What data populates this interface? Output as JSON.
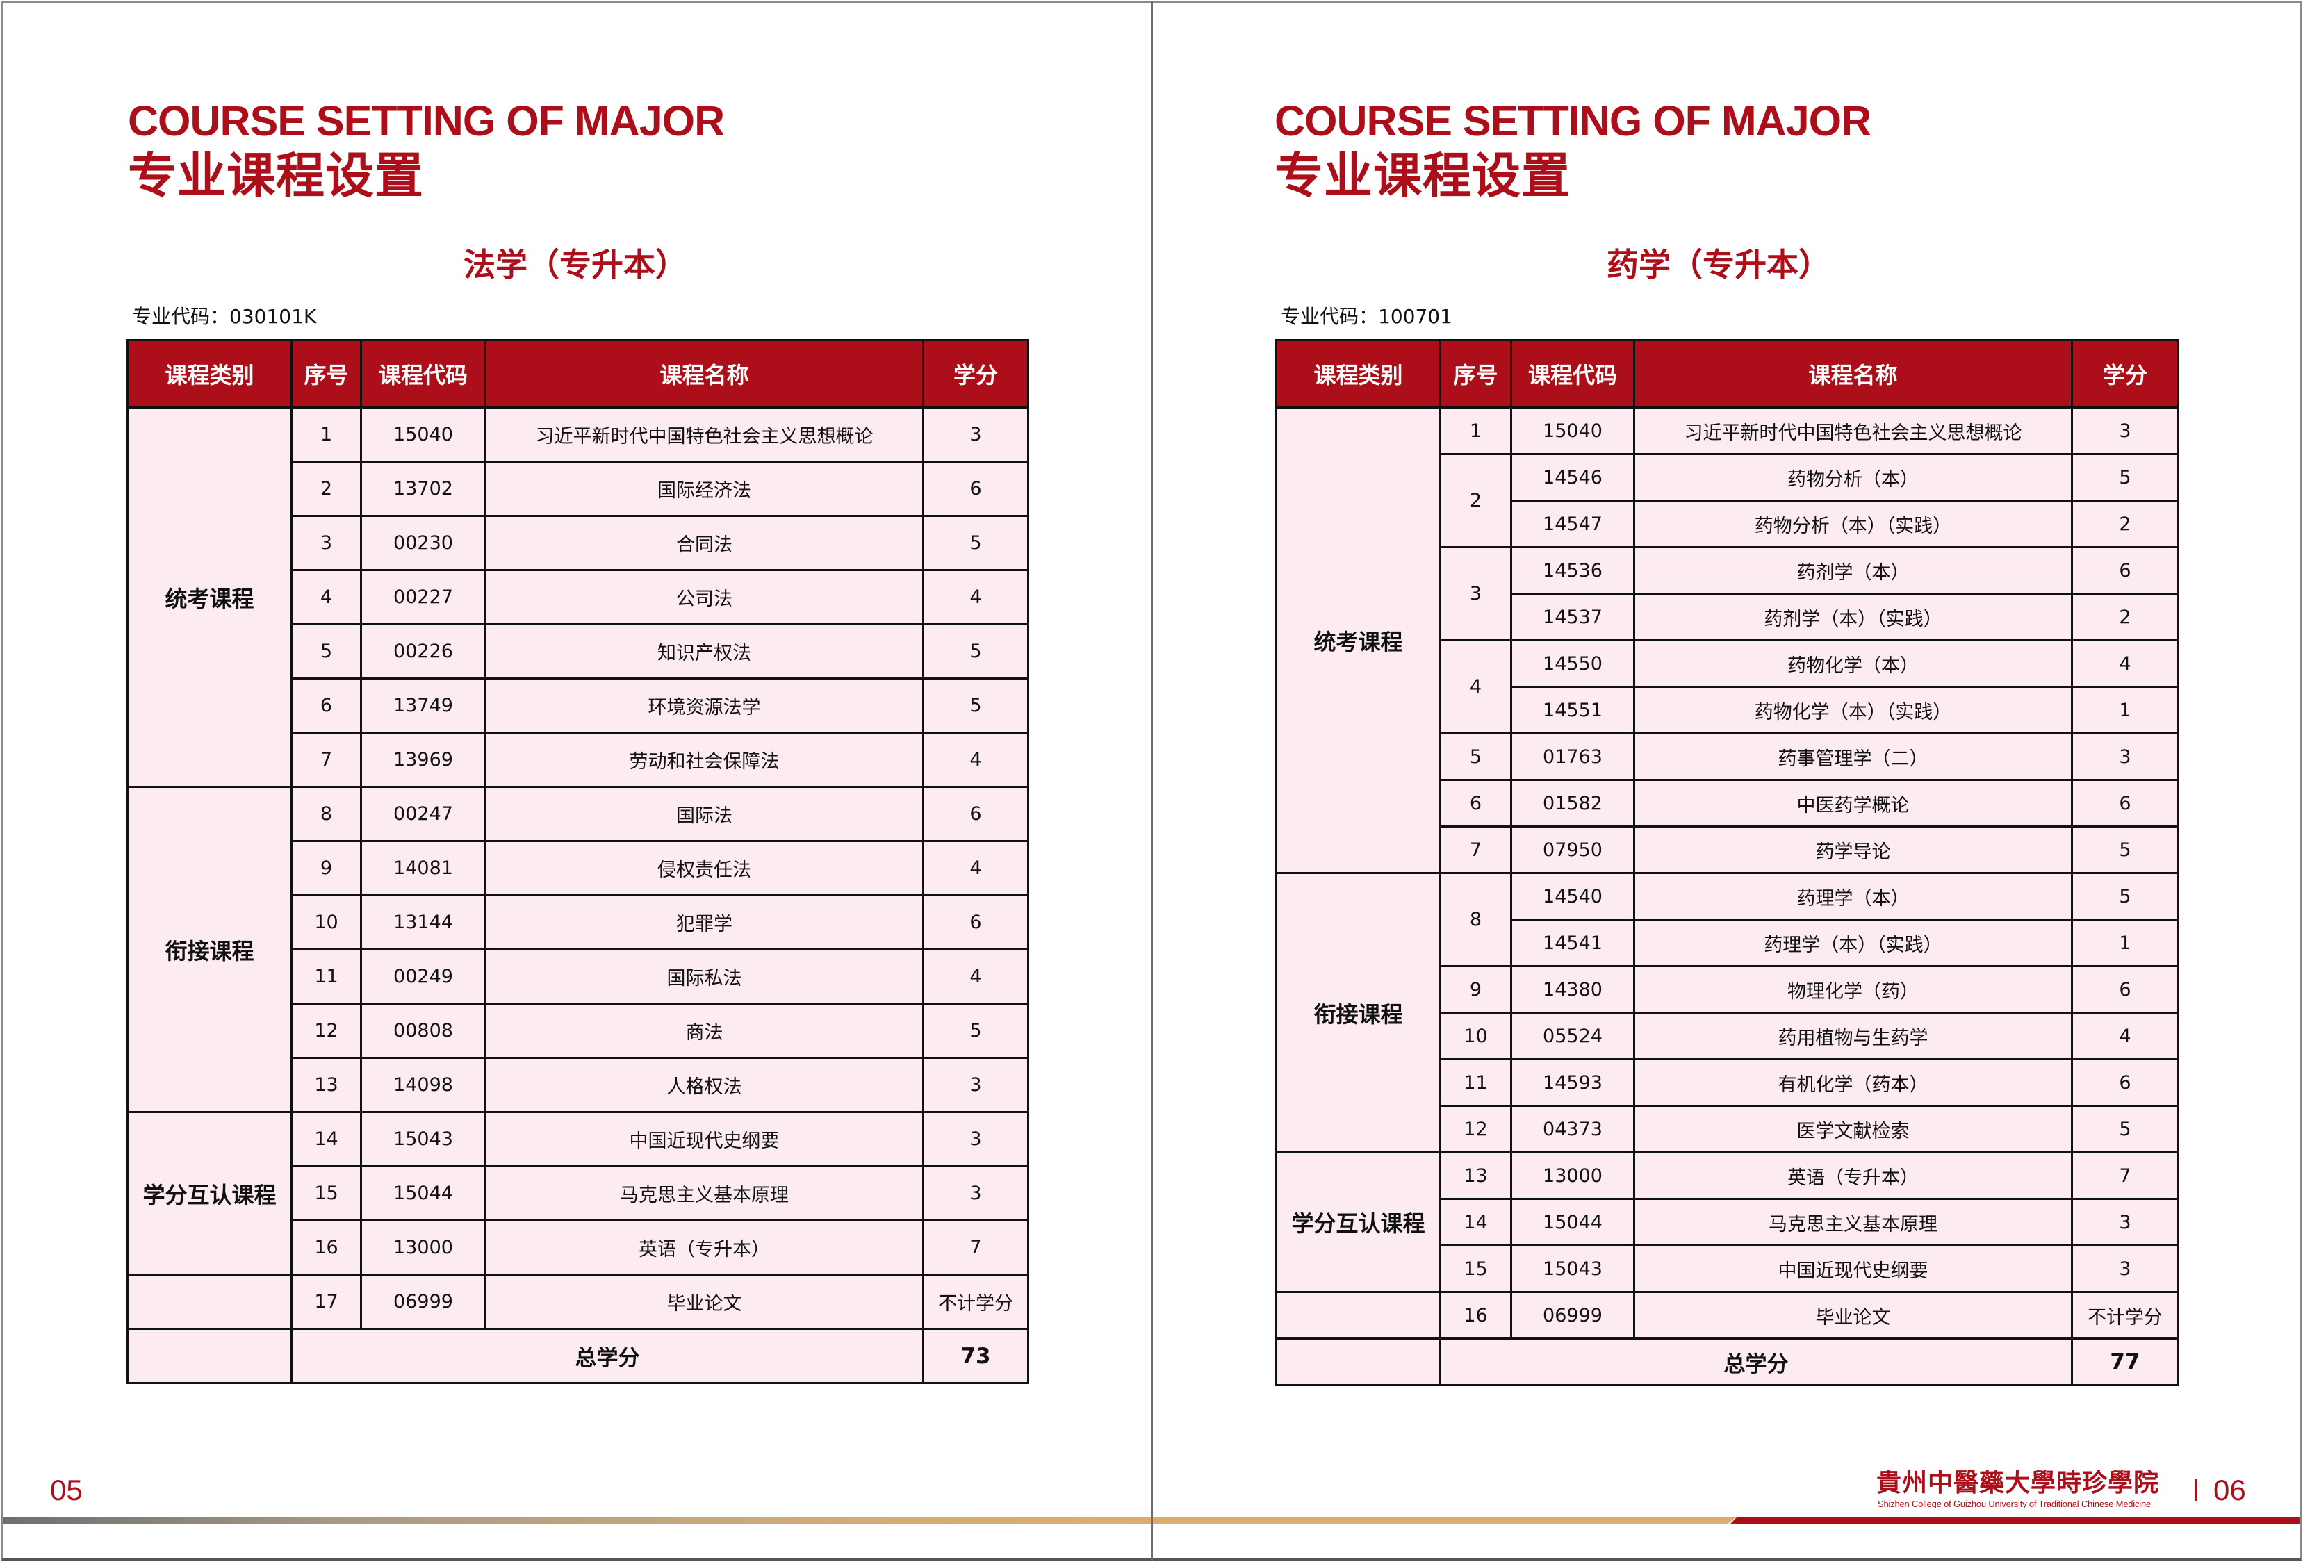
{
  "colors": {
    "accent": "#ad0f1a",
    "table_body": "#fcecf2",
    "stripe_gold": "#dcad6f",
    "stripe_gray": "#6f6f6f"
  },
  "left_page": {
    "en_title": "COURSE SETTING OF MAJOR",
    "cn_title": "专业课程设置",
    "subtitle": "法学（专升本）",
    "major_code": "专业代码：030101K",
    "page_number": "05",
    "table": {
      "headers": [
        "课程类别",
        "序号",
        "课程代码",
        "课程名称",
        "学分"
      ],
      "groups": [
        {
          "label": "统考课程",
          "items": [
            {
              "seq": "1",
              "courses": [
                {
                  "code": "15040",
                  "name": "习近平新时代中国特色社会主义思想概论",
                  "credit": "3"
                }
              ]
            },
            {
              "seq": "2",
              "courses": [
                {
                  "code": "13702",
                  "name": "国际经济法",
                  "credit": "6"
                }
              ]
            },
            {
              "seq": "3",
              "courses": [
                {
                  "code": "00230",
                  "name": "合同法",
                  "credit": "5"
                }
              ]
            },
            {
              "seq": "4",
              "courses": [
                {
                  "code": "00227",
                  "name": "公司法",
                  "credit": "4"
                }
              ]
            },
            {
              "seq": "5",
              "courses": [
                {
                  "code": "00226",
                  "name": "知识产权法",
                  "credit": "5"
                }
              ]
            },
            {
              "seq": "6",
              "courses": [
                {
                  "code": "13749",
                  "name": "环境资源法学",
                  "credit": "5"
                }
              ]
            },
            {
              "seq": "7",
              "courses": [
                {
                  "code": "13969",
                  "name": "劳动和社会保障法",
                  "credit": "4"
                }
              ]
            }
          ]
        },
        {
          "label": "衔接课程",
          "items": [
            {
              "seq": "8",
              "courses": [
                {
                  "code": "00247",
                  "name": "国际法",
                  "credit": "6"
                }
              ]
            },
            {
              "seq": "9",
              "courses": [
                {
                  "code": "14081",
                  "name": "侵权责任法",
                  "credit": "4"
                }
              ]
            },
            {
              "seq": "10",
              "courses": [
                {
                  "code": "13144",
                  "name": "犯罪学",
                  "credit": "6"
                }
              ]
            },
            {
              "seq": "11",
              "courses": [
                {
                  "code": "00249",
                  "name": "国际私法",
                  "credit": "4"
                }
              ]
            },
            {
              "seq": "12",
              "courses": [
                {
                  "code": "00808",
                  "name": "商法",
                  "credit": "5"
                }
              ]
            },
            {
              "seq": "13",
              "courses": [
                {
                  "code": "14098",
                  "name": "人格权法",
                  "credit": "3"
                }
              ]
            }
          ]
        },
        {
          "label": "学分互认课程",
          "items": [
            {
              "seq": "14",
              "courses": [
                {
                  "code": "15043",
                  "name": "中国近现代史纲要",
                  "credit": "3"
                }
              ]
            },
            {
              "seq": "15",
              "courses": [
                {
                  "code": "15044",
                  "name": "马克思主义基本原理",
                  "credit": "3"
                }
              ]
            },
            {
              "seq": "16",
              "courses": [
                {
                  "code": "13000",
                  "name": "英语（专升本）",
                  "credit": "7"
                }
              ]
            }
          ]
        },
        {
          "label": "",
          "items": [
            {
              "seq": "17",
              "courses": [
                {
                  "code": "06999",
                  "name": "毕业论文",
                  "credit": "不计学分"
                }
              ]
            }
          ]
        }
      ],
      "total_label": "总学分",
      "total_value": "73"
    }
  },
  "right_page": {
    "en_title": "COURSE SETTING OF MAJOR",
    "cn_title": "专业课程设置",
    "subtitle": "药学（专升本）",
    "major_code": "专业代码：100701",
    "page_number": "06",
    "table": {
      "headers": [
        "课程类别",
        "序号",
        "课程代码",
        "课程名称",
        "学分"
      ],
      "groups": [
        {
          "label": "统考课程",
          "items": [
            {
              "seq": "1",
              "courses": [
                {
                  "code": "15040",
                  "name": "习近平新时代中国特色社会主义思想概论",
                  "credit": "3"
                }
              ]
            },
            {
              "seq": "2",
              "courses": [
                {
                  "code": "14546",
                  "name": "药物分析（本）",
                  "credit": "5"
                },
                {
                  "code": "14547",
                  "name": "药物分析（本）（实践）",
                  "credit": "2"
                }
              ]
            },
            {
              "seq": "3",
              "courses": [
                {
                  "code": "14536",
                  "name": "药剂学（本）",
                  "credit": "6"
                },
                {
                  "code": "14537",
                  "name": "药剂学（本）（实践）",
                  "credit": "2"
                }
              ]
            },
            {
              "seq": "4",
              "courses": [
                {
                  "code": "14550",
                  "name": "药物化学（本）",
                  "credit": "4"
                },
                {
                  "code": "14551",
                  "name": "药物化学（本）（实践）",
                  "credit": "1"
                }
              ]
            },
            {
              "seq": "5",
              "courses": [
                {
                  "code": "01763",
                  "name": "药事管理学（二）",
                  "credit": "3"
                }
              ]
            },
            {
              "seq": "6",
              "courses": [
                {
                  "code": "01582",
                  "name": "中医药学概论",
                  "credit": "6"
                }
              ]
            },
            {
              "seq": "7",
              "courses": [
                {
                  "code": "07950",
                  "name": "药学导论",
                  "credit": "5"
                }
              ]
            }
          ]
        },
        {
          "label": "衔接课程",
          "items": [
            {
              "seq": "8",
              "courses": [
                {
                  "code": "14540",
                  "name": "药理学（本）",
                  "credit": "5"
                },
                {
                  "code": "14541",
                  "name": "药理学（本）（实践）",
                  "credit": "1"
                }
              ]
            },
            {
              "seq": "9",
              "courses": [
                {
                  "code": "14380",
                  "name": "物理化学（药）",
                  "credit": "6"
                }
              ]
            },
            {
              "seq": "10",
              "courses": [
                {
                  "code": "05524",
                  "name": "药用植物与生药学",
                  "credit": "4"
                }
              ]
            },
            {
              "seq": "11",
              "courses": [
                {
                  "code": "14593",
                  "name": "有机化学（药本）",
                  "credit": "6"
                }
              ]
            },
            {
              "seq": "12",
              "courses": [
                {
                  "code": "04373",
                  "name": "医学文献检索",
                  "credit": "5"
                }
              ]
            }
          ]
        },
        {
          "label": "学分互认课程",
          "items": [
            {
              "seq": "13",
              "courses": [
                {
                  "code": "13000",
                  "name": "英语（专升本）",
                  "credit": "7"
                }
              ]
            },
            {
              "seq": "14",
              "courses": [
                {
                  "code": "15044",
                  "name": "马克思主义基本原理",
                  "credit": "3"
                }
              ]
            },
            {
              "seq": "15",
              "courses": [
                {
                  "code": "15043",
                  "name": "中国近现代史纲要",
                  "credit": "3"
                }
              ]
            }
          ]
        },
        {
          "label": "",
          "items": [
            {
              "seq": "16",
              "courses": [
                {
                  "code": "06999",
                  "name": "毕业论文",
                  "credit": "不计学分"
                }
              ]
            }
          ]
        }
      ],
      "total_label": "总学分",
      "total_value": "77"
    }
  },
  "footer": {
    "logo_cn": "貴州中醫藥大學時珍學院",
    "logo_en": "Shizhen College of Guizhou University of Traditional Chinese Medicine"
  }
}
